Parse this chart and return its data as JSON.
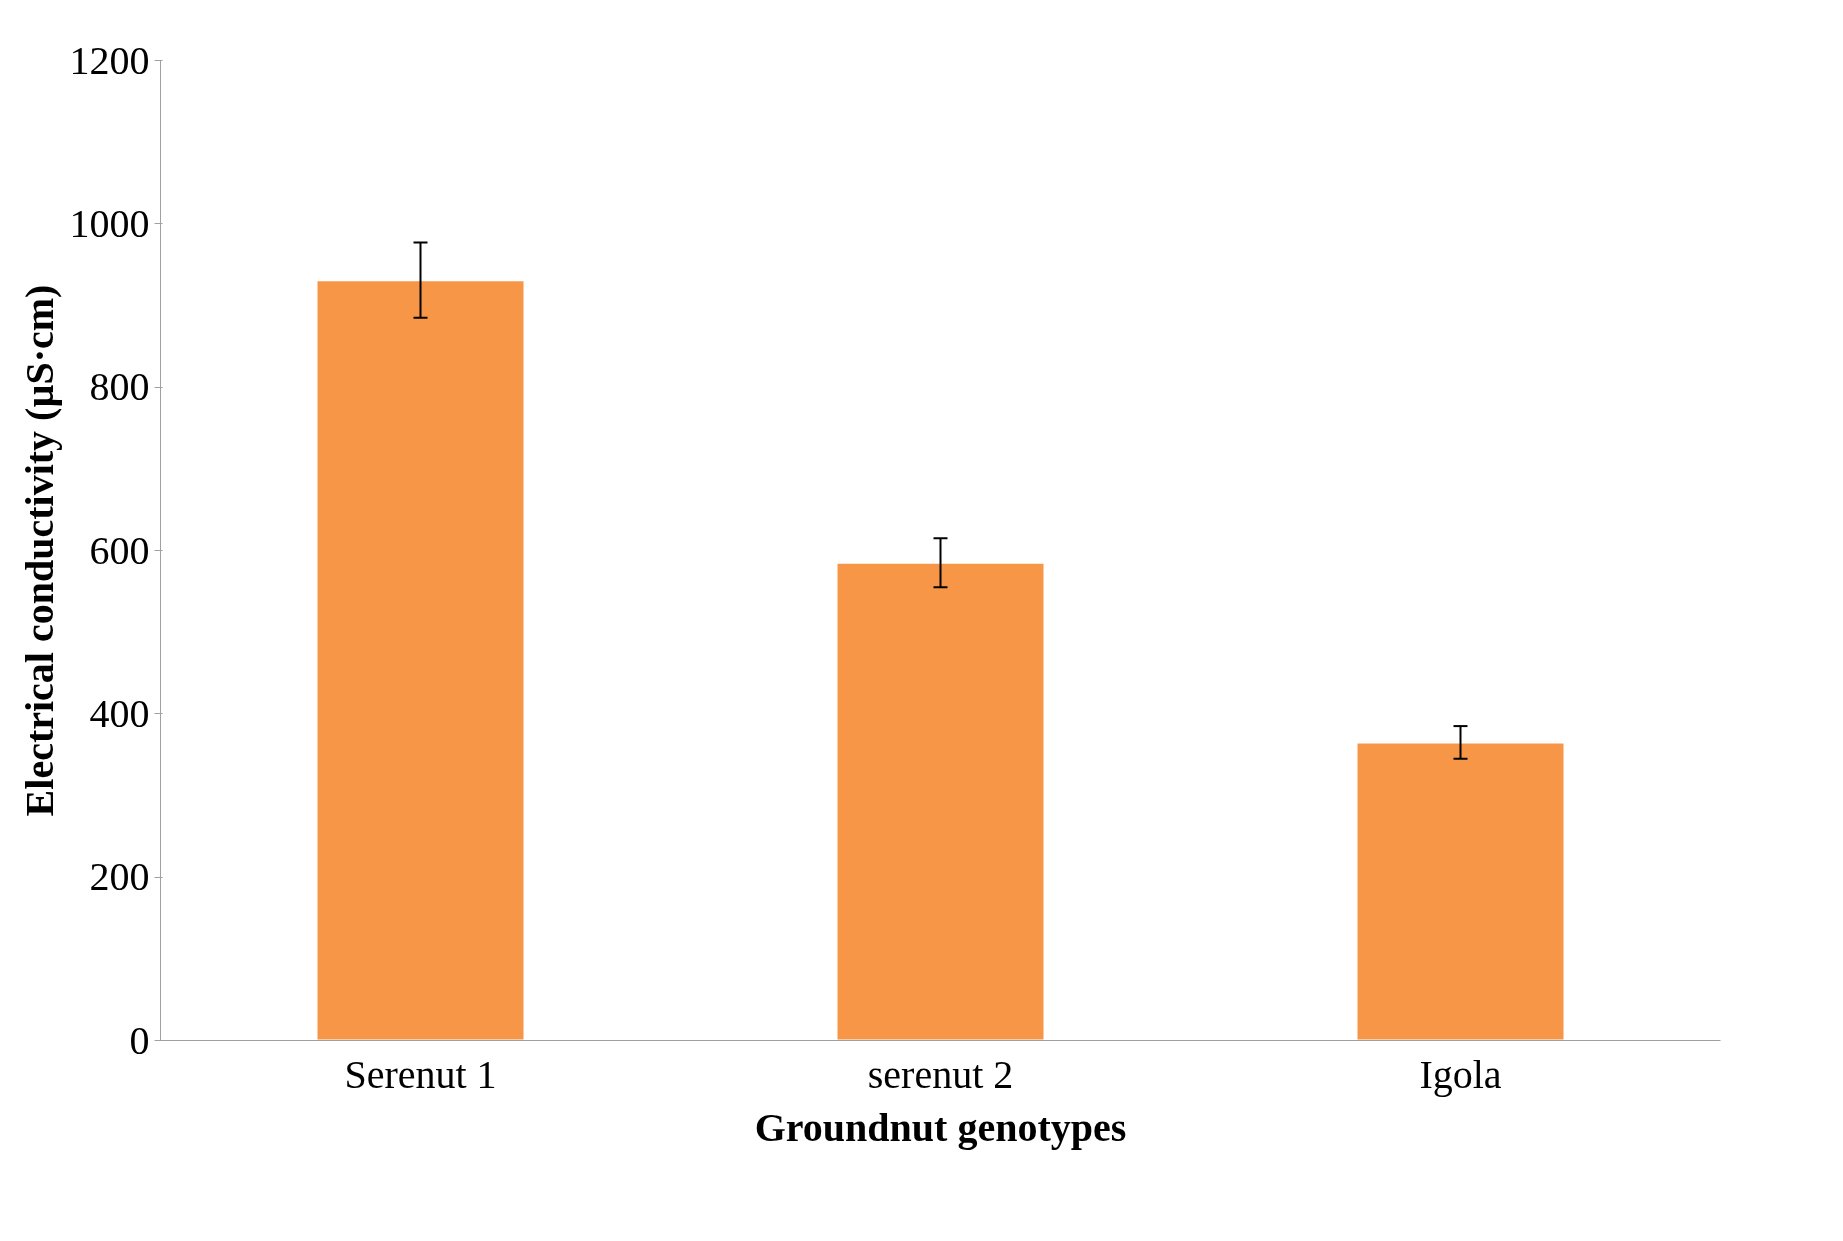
{
  "chart_data": {
    "type": "bar",
    "xlabel": "Groundnut genotypes",
    "ylabel": "Electrical conductivity (µS·cm)",
    "categories": [
      "Serenut 1",
      "serenut 2",
      "Igola"
    ],
    "values": [
      931,
      585,
      365
    ],
    "errors": [
      46,
      30,
      20
    ],
    "color": "#f79646",
    "ylim": [
      0,
      1200
    ],
    "yticks": [
      0,
      200,
      400,
      600,
      800,
      1000,
      1200
    ],
    "grid": false
  }
}
